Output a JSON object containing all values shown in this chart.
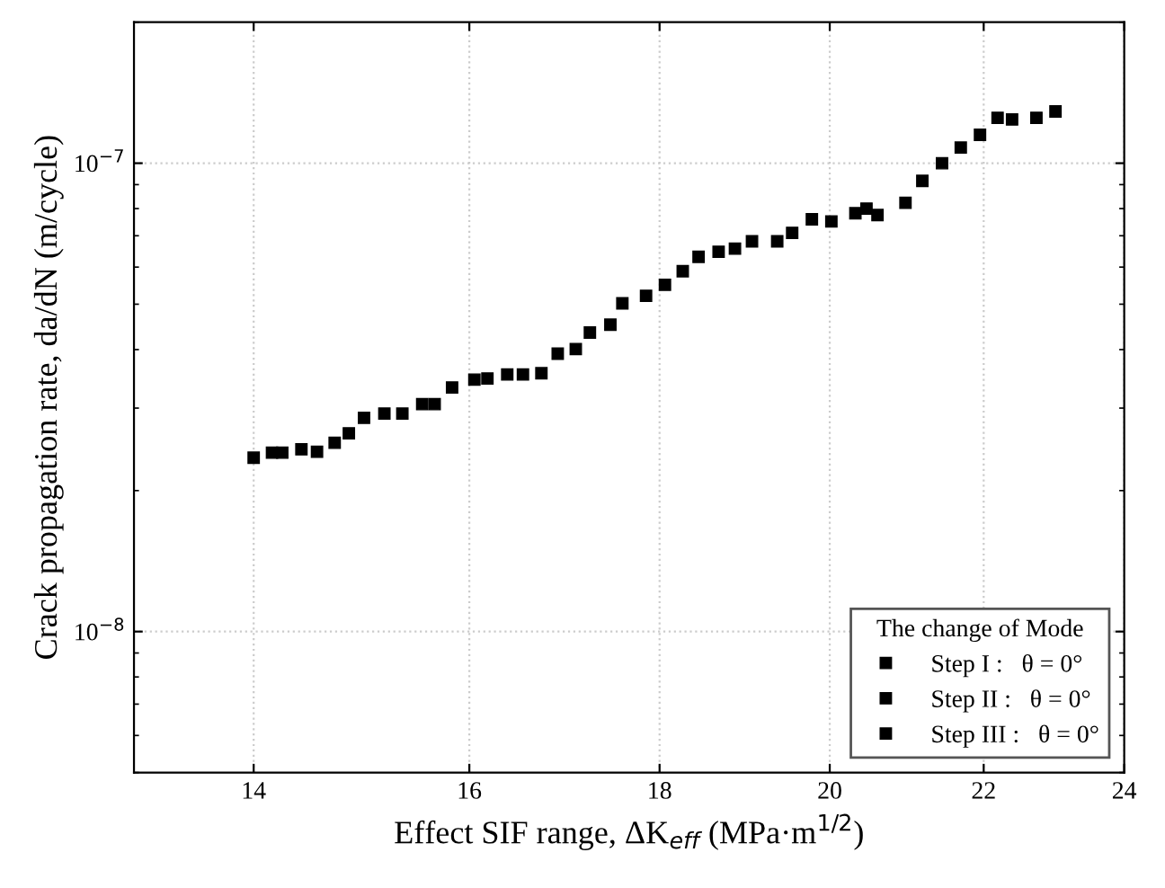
{
  "chart_data": {
    "type": "scatter",
    "xlabel": "Effect SIF range, ΔK$_{eff}$ (MPa·m$^{1/2}$)",
    "ylabel": "Crack propagation rate, da/dN (m/cycle)",
    "legend_title": "The change of Mode",
    "log": "xy",
    "grid": true,
    "legend": "bottom right",
    "marker": "square",
    "xlim": [
      13,
      24
    ],
    "xticks": [
      14,
      16,
      18,
      20,
      22,
      24
    ],
    "ylim": [
      5e-09,
      2e-07
    ],
    "yticks": [
      {
        "value": 1e-08,
        "label": "10$^{−8}$"
      },
      {
        "value": 1e-07,
        "label": "10$^{−7}$"
      }
    ],
    "series": [
      {
        "name": "Step I :   θ = 0°",
        "color": "#000000",
        "x": [
          14.0,
          14.16,
          14.25,
          14.42,
          14.56,
          14.72,
          14.85,
          14.99,
          15.18,
          15.35,
          15.54,
          15.66,
          15.83,
          16.05,
          16.18,
          16.38
        ],
        "values": [
          2.35e-08,
          2.41e-08,
          2.41e-08,
          2.45e-08,
          2.42e-08,
          2.53e-08,
          2.65e-08,
          2.86e-08,
          2.92e-08,
          2.92e-08,
          3.06e-08,
          3.06e-08,
          3.32e-08,
          3.45e-08,
          3.47e-08,
          3.54e-08
        ]
      },
      {
        "name": "Step II :   θ = 0°",
        "color": "#000000",
        "x": [
          16.54,
          16.73,
          16.9,
          17.09,
          17.24,
          17.46,
          17.59,
          17.85,
          18.06,
          18.26,
          18.44,
          18.67,
          18.86,
          19.06,
          19.36
        ],
        "values": [
          3.54e-08,
          3.56e-08,
          3.92e-08,
          4.01e-08,
          4.35e-08,
          4.52e-08,
          5.02e-08,
          5.21e-08,
          5.5e-08,
          5.88e-08,
          6.31e-08,
          6.47e-08,
          6.57e-08,
          6.81e-08,
          6.81e-08
        ]
      },
      {
        "name": "Step III :   θ = 0°",
        "color": "#000000",
        "x": [
          19.54,
          19.78,
          20.02,
          20.32,
          20.46,
          20.6,
          20.96,
          21.18,
          21.44,
          21.69,
          21.95,
          22.19,
          22.39,
          22.73,
          23.0
        ],
        "values": [
          7.1e-08,
          7.59e-08,
          7.51e-08,
          7.82e-08,
          8e-08,
          7.75e-08,
          8.23e-08,
          9.17e-08,
          1e-07,
          1.08e-07,
          1.15e-07,
          1.25e-07,
          1.24e-07,
          1.25e-07,
          1.29e-07
        ]
      }
    ]
  }
}
